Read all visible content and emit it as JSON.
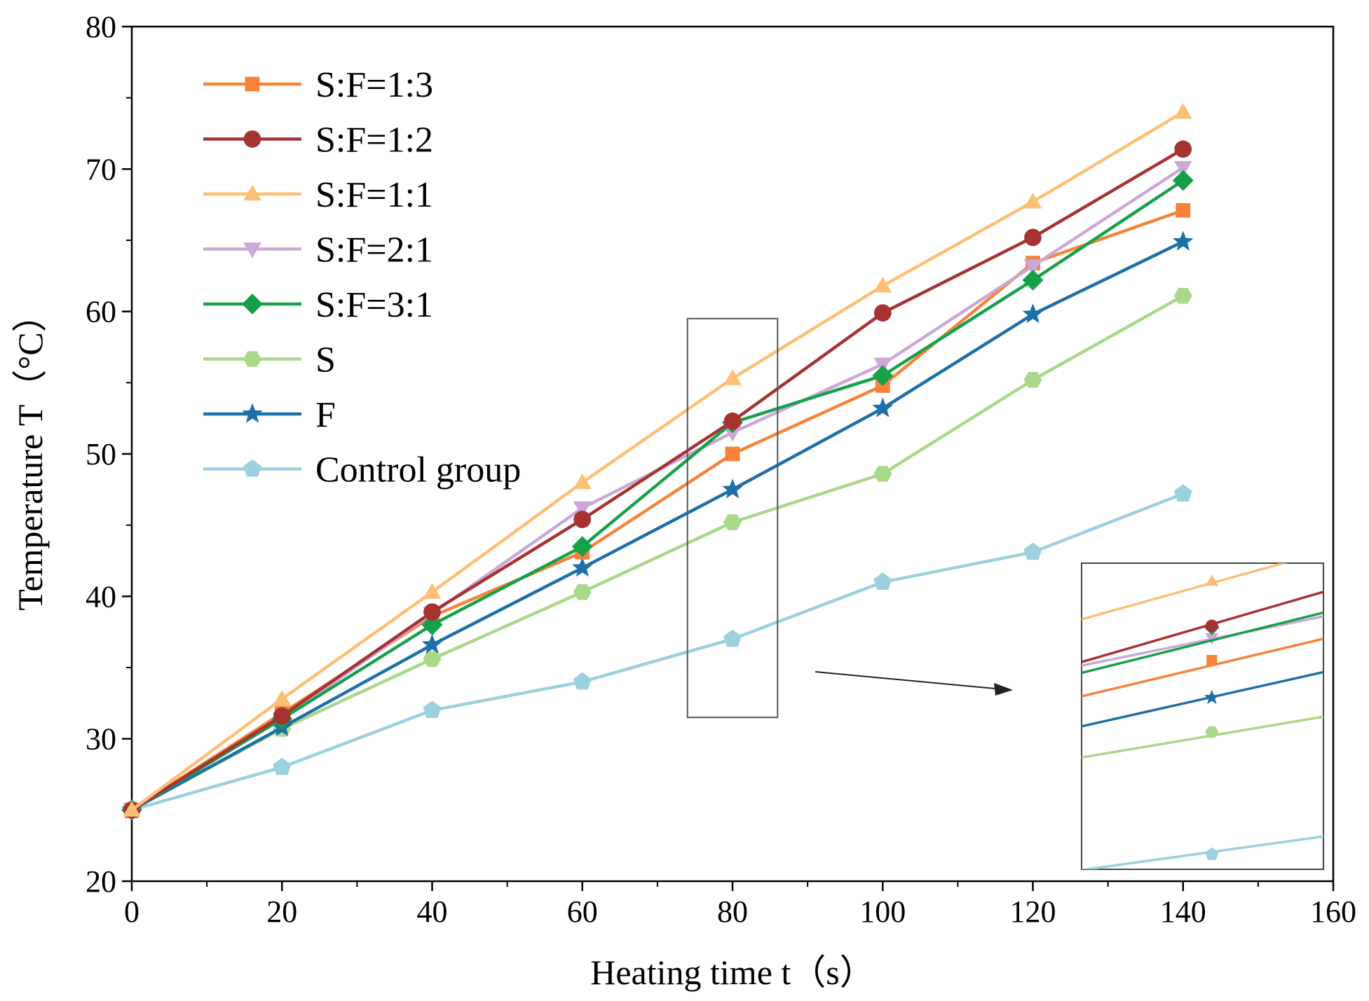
{
  "chart_data": {
    "type": "line",
    "title": "",
    "xlabel": "Heating time t（s）",
    "ylabel": "Temperature T（°C）",
    "xlim": [
      0,
      160
    ],
    "ylim": [
      20,
      80
    ],
    "xticks": [
      0,
      20,
      40,
      60,
      80,
      100,
      120,
      140,
      160
    ],
    "yticks": [
      20,
      30,
      40,
      50,
      60,
      70,
      80
    ],
    "x": [
      0,
      20,
      40,
      60,
      80,
      100,
      120,
      140
    ],
    "legend_position": "top-left",
    "grid": false,
    "series": [
      {
        "name": "S:F=1:3",
        "marker": "square",
        "color": "#F5843A",
        "values": [
          25,
          31.8,
          38.6,
          43.1,
          50.0,
          54.8,
          63.4,
          67.1
        ]
      },
      {
        "name": "S:F=1:2",
        "marker": "circle",
        "color": "#A63232",
        "values": [
          25,
          31.6,
          38.9,
          45.4,
          52.3,
          59.9,
          65.2,
          71.4
        ]
      },
      {
        "name": "S:F=1:1",
        "marker": "triangle-up",
        "color": "#FDBF76",
        "values": [
          25,
          32.8,
          40.3,
          48.0,
          55.3,
          61.8,
          67.7,
          74.0
        ]
      },
      {
        "name": "S:F=2:1",
        "marker": "triangle-down",
        "color": "#CBA8D6",
        "values": [
          25,
          31.4,
          38.8,
          46.2,
          51.5,
          56.3,
          63.2,
          70.1
        ]
      },
      {
        "name": "S:F=3:1",
        "marker": "diamond",
        "color": "#17A04A",
        "values": [
          25,
          31.4,
          38.0,
          43.5,
          52.2,
          55.5,
          62.2,
          69.2
        ]
      },
      {
        "name": "S",
        "marker": "hexagon",
        "color": "#A8D888",
        "values": [
          25,
          30.7,
          35.6,
          40.3,
          45.2,
          48.6,
          55.2,
          61.1
        ]
      },
      {
        "name": "F",
        "marker": "star",
        "color": "#1C6FA8",
        "values": [
          25,
          30.8,
          36.6,
          42.0,
          47.5,
          53.2,
          59.8,
          64.9
        ]
      },
      {
        "name": "Control group",
        "marker": "pentagon",
        "color": "#9BD0DE",
        "values": [
          25,
          28.0,
          32.0,
          34.0,
          37.0,
          41.0,
          43.1,
          47.2
        ]
      }
    ],
    "annotations": [
      {
        "type": "zoom-box",
        "x_range": [
          74,
          86
        ],
        "y_range": [
          31.5,
          59.5
        ],
        "description": "magnified inset of the region around t = 80 s"
      }
    ]
  }
}
